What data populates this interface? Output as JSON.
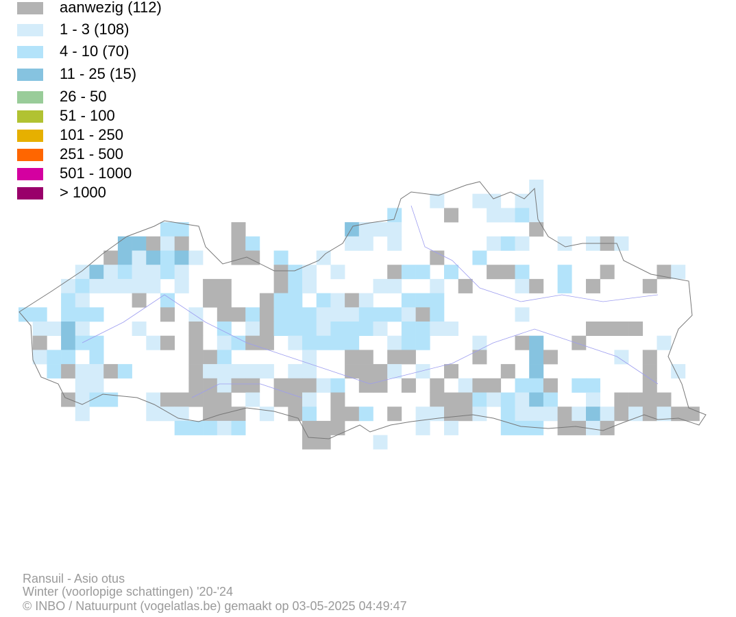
{
  "legend": {
    "items": [
      {
        "label": "aanwezig (112)",
        "color": "#b3b3b3"
      },
      {
        "label": "1 - 3 (108)",
        "color": "#d4ecfa"
      },
      {
        "label": "4 - 10 (70)",
        "color": "#b3e3fa"
      },
      {
        "label": "11 - 25 (15)",
        "color": "#86c3e0"
      },
      {
        "label": "26 - 50",
        "color": "#99cc99"
      },
      {
        "label": "51 - 100",
        "color": "#b1c232"
      },
      {
        "label": "101 - 250",
        "color": "#e6b000"
      },
      {
        "label": "251 - 500",
        "color": "#ff6600"
      },
      {
        "label": "501 - 1000",
        "color": "#d400a0"
      },
      {
        "label": "> 1000",
        "color": "#99006a"
      }
    ]
  },
  "footer": {
    "species": "Ransuil - Asio otus",
    "period": "Winter (voorlopige schattingen) '20-'24",
    "credit": "© INBO / Natuurpunt (vogelatlas.be) gemaakt op 03-05-2025 04:49:47"
  }
}
